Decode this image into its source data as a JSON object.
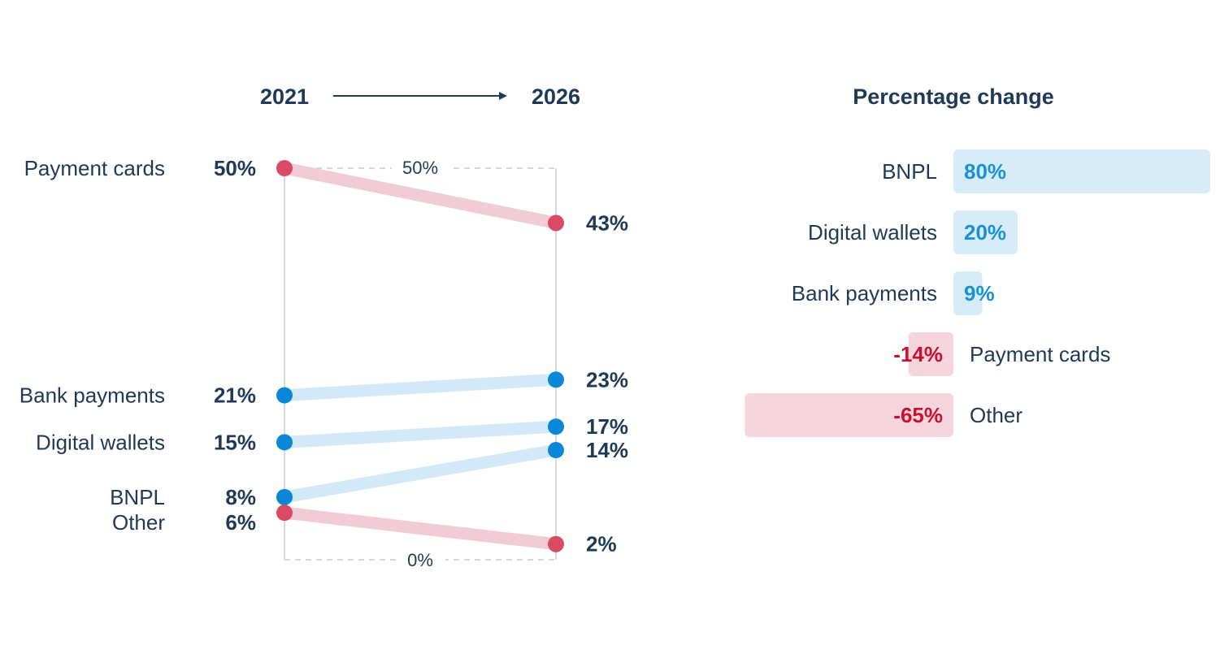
{
  "colors": {
    "text": "#1e3a56",
    "increase_dot": "#0a87d6",
    "increase_line": "#d3e9f7",
    "decrease_dot": "#d94b62",
    "decrease_line": "#f2ccd4",
    "pos_bar": "#d8ecf8",
    "pos_text": "#1791d9",
    "neg_bar": "#f5d6dc",
    "neg_text": "#c9102f",
    "axis": "#d6d8dd"
  },
  "chart_data": [
    {
      "type": "slope",
      "title": "",
      "start_label": "2021",
      "end_label": "2026",
      "axis_max_label": "50%",
      "axis_min_label": "0%",
      "ylim": [
        0,
        50
      ],
      "series": [
        {
          "name": "Payment cards",
          "start": 50,
          "end": 43,
          "start_label": "50%",
          "end_label": "43%",
          "direction": "down"
        },
        {
          "name": "Bank payments",
          "start": 21,
          "end": 23,
          "start_label": "21%",
          "end_label": "23%",
          "direction": "up"
        },
        {
          "name": "Digital wallets",
          "start": 15,
          "end": 17,
          "start_label": "15%",
          "end_label": "17%",
          "direction": "up"
        },
        {
          "name": "BNPL",
          "start": 8,
          "end": 14,
          "start_label": "8%",
          "end_label": "14%",
          "direction": "up"
        },
        {
          "name": "Other",
          "start": 6,
          "end": 2,
          "start_label": "6%",
          "end_label": "2%",
          "direction": "down"
        }
      ]
    },
    {
      "type": "bar",
      "title": "Percentage change",
      "categories": [
        "BNPL",
        "Digital wallets",
        "Bank payments",
        "Payment cards",
        "Other"
      ],
      "values": [
        80,
        20,
        9,
        -14,
        -65
      ],
      "value_labels": [
        "80%",
        "20%",
        "9%",
        "-14%",
        "-65%"
      ]
    }
  ]
}
